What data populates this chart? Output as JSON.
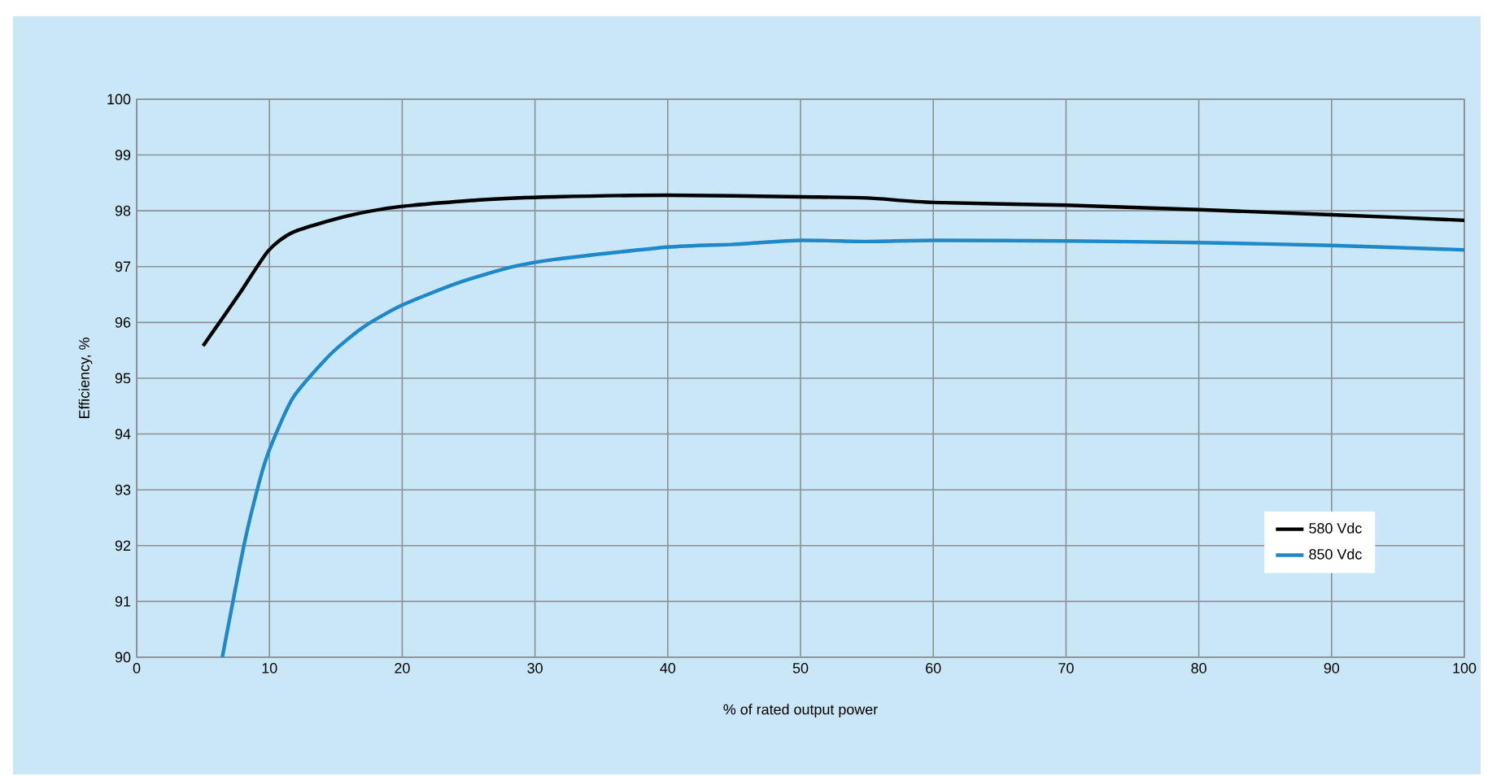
{
  "chart_data": {
    "type": "line",
    "xlabel": "% of rated output power",
    "ylabel": "Efficiency, %",
    "xlim": [
      0,
      100
    ],
    "ylim": [
      90,
      100
    ],
    "xticks": [
      0,
      10,
      20,
      30,
      40,
      50,
      60,
      70,
      80,
      90,
      100
    ],
    "yticks": [
      90,
      91,
      92,
      93,
      94,
      95,
      96,
      97,
      98,
      99,
      100
    ],
    "grid": true,
    "legend": "bottom right",
    "marker": "none",
    "line_style": "solid",
    "series": [
      {
        "name": "580 Vdc",
        "color": "#000000",
        "x": [
          5.0,
          7.7,
          9.9,
          11.8,
          15.9,
          20.0,
          26.1,
          31.5,
          40,
          50,
          55,
          60,
          70,
          80,
          90,
          100
        ],
        "values": [
          95.58,
          96.5,
          97.28,
          97.62,
          97.91,
          98.08,
          98.2,
          98.25,
          98.28,
          98.25,
          98.23,
          98.15,
          98.1,
          98.02,
          97.93,
          97.83
        ]
      },
      {
        "name": "850 Vdc",
        "color": "#1e88c8",
        "x": [
          6.45,
          8.1,
          9.3,
          10.1,
          11.8,
          14.6,
          17.1,
          20.0,
          24.1,
          28.2,
          31.5,
          40,
          45,
          50,
          55,
          60,
          70,
          80,
          90,
          100
        ],
        "values": [
          90,
          92.03,
          93.2,
          93.78,
          94.66,
          95.43,
          95.92,
          96.31,
          96.7,
          96.99,
          97.13,
          97.35,
          97.4,
          97.47,
          97.45,
          97.47,
          97.46,
          97.43,
          97.38,
          97.3
        ]
      }
    ]
  }
}
